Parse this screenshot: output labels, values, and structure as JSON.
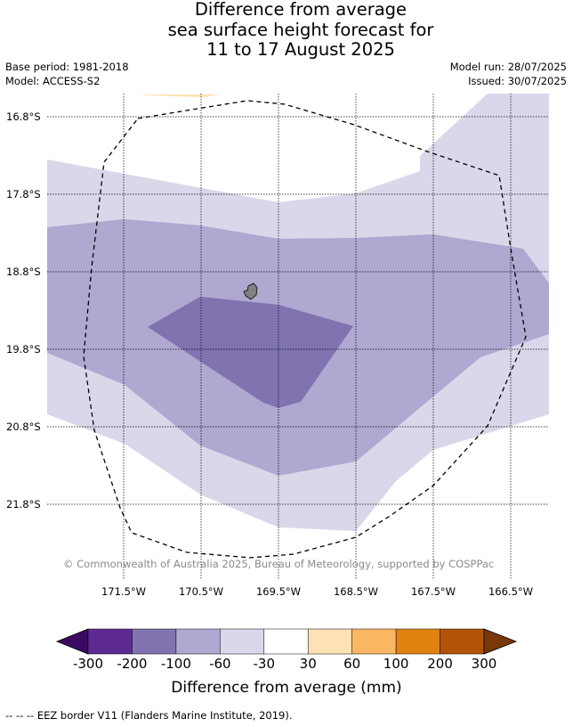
{
  "title": {
    "line1": "Difference from average",
    "line2": "sea surface height forecast for",
    "line3": "11 to 17 August 2025"
  },
  "meta": {
    "base_period": "Base period: 1981-2018",
    "model": "Model: ACCESS-S2",
    "model_run": "Model run: 28/07/2025",
    "issued": "Issued: 30/07/2025"
  },
  "map": {
    "lat_labels": [
      "16.8°S",
      "17.8°S",
      "18.8°S",
      "19.8°S",
      "20.8°S",
      "21.8°S"
    ],
    "lon_labels": [
      "171.5°W",
      "170.5°W",
      "169.5°W",
      "168.5°W",
      "167.5°W",
      "166.5°W"
    ],
    "copyright": "© Commonwealth of Australia 2025, Bureau of Meteorology, supported by COSPPac",
    "bin_colors": {
      "m60_m30": "#d8d8ea",
      "m100_m60": "#afa8d0",
      "m200_m100": "#8073b0",
      "p30_p60": "#fde2b8"
    },
    "grid_style": "dotted",
    "eez_border_style": "dashed"
  },
  "colorbar": {
    "ticks": [
      "-300",
      "-200",
      "-100",
      "-60",
      "-30",
      "30",
      "60",
      "100",
      "200",
      "300"
    ],
    "colors": [
      "#3b0a60",
      "#5c2a91",
      "#8073b0",
      "#afa8d0",
      "#d8d8ea",
      "#ffffff",
      "#fde2b8",
      "#fbb662",
      "#e0820f",
      "#b15409",
      "#7a3707"
    ],
    "label": "Difference from average (mm)"
  },
  "footer": "--  --  -- EEZ border V11 (Flanders Marine Institute, 2019)."
}
